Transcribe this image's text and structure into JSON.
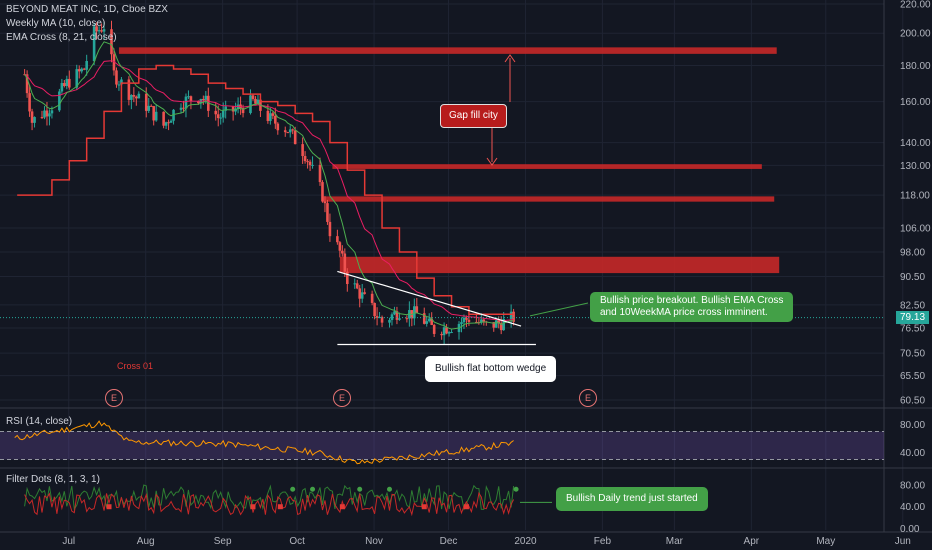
{
  "legend": {
    "symbol": "BEYOND MEAT INC, 1D, Cboe BZX",
    "weekly_ma": "Weekly MA (10, close)",
    "ema_cross": "EMA Cross (8, 21, close)",
    "rsi": "RSI (14, close)",
    "filter_dots": "Filter Dots (8, 1, 3, 1)"
  },
  "annotations": {
    "gap_fill": "Gap fill city",
    "breakout": [
      "Bullish price breakout.  Bullish EMA Cross",
      "and 10WeekMA price cross imminent."
    ],
    "wedge": "Bullish flat bottom wedge",
    "daily_trend": "Bullish Daily trend just started",
    "cross": "Cross 01",
    "earnings_badge": "E"
  },
  "price_axis": [
    "220.00",
    "200.00",
    "180.00",
    "160.00",
    "140.00",
    "130.00",
    "118.00",
    "106.00",
    "98.00",
    "90.50",
    "82.50",
    "76.50",
    "70.50",
    "65.50",
    "60.50"
  ],
  "current_price": "79.13",
  "rsi_axis": [
    "80.00",
    "40.00"
  ],
  "dots_axis": [
    "80.00",
    "40.00",
    "0.00"
  ],
  "time_axis": [
    "Jul",
    "Aug",
    "Sep",
    "Oct",
    "Nov",
    "Dec",
    "2020",
    "Feb",
    "Mar",
    "Apr",
    "May",
    "Jun"
  ],
  "colors": {
    "background": "#131722",
    "up": "#26a69a",
    "down": "#ef5350",
    "weekly_ma": "#e53935",
    "ema_fast": "#4caf50",
    "ema_slow": "#e91e63",
    "zone": "#c62828",
    "rsi_line": "#ff9800",
    "rsi_band": "#7e57c2"
  },
  "chart_data": {
    "type": "candlestick",
    "symbol": "BEYOND MEAT INC",
    "interval": "1D",
    "y_scale": "log",
    "ylim": [
      58,
      222
    ],
    "price_path": [
      [
        "2019-06-24",
        175
      ],
      [
        "2019-06-27",
        150
      ],
      [
        "2019-07-05",
        158
      ],
      [
        "2019-07-11",
        170
      ],
      [
        "2019-07-18",
        178
      ],
      [
        "2019-07-22",
        200
      ],
      [
        "2019-07-26",
        205
      ],
      [
        "2019-07-30",
        175
      ],
      [
        "2019-08-05",
        165
      ],
      [
        "2019-08-12",
        158
      ],
      [
        "2019-08-19",
        148
      ],
      [
        "2019-08-26",
        160
      ],
      [
        "2019-09-03",
        163
      ],
      [
        "2019-09-10",
        152
      ],
      [
        "2019-09-17",
        156
      ],
      [
        "2019-09-24",
        160
      ],
      [
        "2019-10-01",
        151
      ],
      [
        "2019-10-08",
        146
      ],
      [
        "2019-10-15",
        135
      ],
      [
        "2019-10-22",
        118
      ],
      [
        "2019-10-25",
        105
      ],
      [
        "2019-10-29",
        98
      ],
      [
        "2019-11-01",
        90
      ],
      [
        "2019-11-08",
        84
      ],
      [
        "2019-11-15",
        78
      ],
      [
        "2019-11-22",
        81
      ],
      [
        "2019-11-29",
        80
      ],
      [
        "2019-12-06",
        76
      ],
      [
        "2019-12-13",
        77
      ],
      [
        "2019-12-20",
        79
      ],
      [
        "2019-12-27",
        77
      ],
      [
        "2020-01-03",
        78
      ],
      [
        "2020-01-07",
        79.13
      ]
    ],
    "weekly_ma_steps": [
      [
        "2019-06-21",
        118
      ],
      [
        "2019-07-05",
        124
      ],
      [
        "2019-07-12",
        132
      ],
      [
        "2019-07-19",
        142
      ],
      [
        "2019-07-26",
        155
      ],
      [
        "2019-08-02",
        170
      ],
      [
        "2019-08-09",
        178
      ],
      [
        "2019-08-16",
        180
      ],
      [
        "2019-08-23",
        178
      ],
      [
        "2019-08-30",
        175
      ],
      [
        "2019-09-06",
        170
      ],
      [
        "2019-09-13",
        167
      ],
      [
        "2019-09-20",
        164
      ],
      [
        "2019-09-27",
        160
      ],
      [
        "2019-10-04",
        158
      ],
      [
        "2019-10-11",
        154
      ],
      [
        "2019-10-18",
        150
      ],
      [
        "2019-10-25",
        140
      ],
      [
        "2019-11-01",
        128
      ],
      [
        "2019-11-08",
        118
      ],
      [
        "2019-11-15",
        106
      ],
      [
        "2019-11-22",
        98
      ],
      [
        "2019-11-29",
        90
      ],
      [
        "2019-12-06",
        85
      ],
      [
        "2019-12-13",
        82
      ],
      [
        "2019-12-20",
        80
      ],
      [
        "2020-01-07",
        80
      ]
    ],
    "resistance_zones": [
      {
        "from": "2019-08-01",
        "to": "2020-04-22",
        "low": 187,
        "high": 191
      },
      {
        "from": "2019-10-26",
        "to": "2020-04-16",
        "low": 128.5,
        "high": 130.5
      },
      {
        "from": "2019-10-22",
        "to": "2020-04-21",
        "low": 115.5,
        "high": 117.5
      },
      {
        "from": "2019-10-29",
        "to": "2020-04-23",
        "low": 91.5,
        "high": 96.5
      }
    ],
    "wedge": {
      "top": [
        [
          "2019-10-28",
          92
        ],
        [
          "2020-01-10",
          77
        ]
      ],
      "bottom": [
        [
          "2019-10-28",
          72.5
        ],
        [
          "2020-01-16",
          72.5
        ]
      ]
    },
    "rsi": {
      "ylim": [
        15,
        95
      ],
      "bands": [
        30,
        70
      ],
      "path": [
        [
          "2019-06-20",
          60
        ],
        [
          "2019-07-25",
          82
        ],
        [
          "2019-08-05",
          55
        ],
        [
          "2019-09-15",
          52
        ],
        [
          "2019-10-20",
          40
        ],
        [
          "2019-11-05",
          25
        ],
        [
          "2019-12-10",
          40
        ],
        [
          "2020-01-07",
          53
        ]
      ]
    },
    "filter_dots": {
      "ylim": [
        -10,
        100
      ],
      "up_dates": [
        "2019-10-10",
        "2019-10-18",
        "2019-11-06",
        "2019-11-18",
        "2020-01-08"
      ],
      "down_dates": [
        "2019-07-28",
        "2019-09-24",
        "2019-10-05",
        "2019-10-30",
        "2019-12-02",
        "2019-12-19"
      ]
    }
  }
}
